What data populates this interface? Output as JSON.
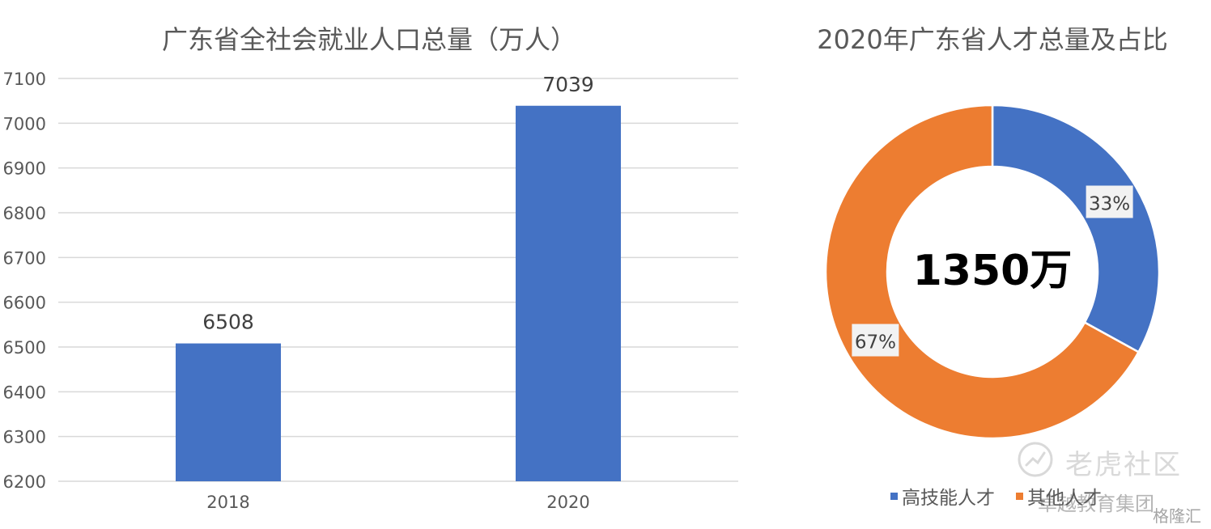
{
  "colors": {
    "blue": "#4472C4",
    "orange": "#ED7D31",
    "grid": "#D9D9D9",
    "text": "#595959"
  },
  "chart_data": [
    {
      "type": "bar",
      "title": "广东省全社会就业人口总量（万人）",
      "categories": [
        "2018",
        "2020"
      ],
      "values": [
        6508,
        7039
      ],
      "data_labels": [
        "6508",
        "7039"
      ],
      "ylim": [
        6200,
        7100
      ],
      "yticks": [
        "6200",
        "6300",
        "6400",
        "6500",
        "6600",
        "6700",
        "6800",
        "6900",
        "7000",
        "7100"
      ],
      "grid": true,
      "color": "#4472C4"
    },
    {
      "type": "pie",
      "donut": true,
      "title": "2020年广东省人才总量及占比",
      "center_label": "1350万",
      "slices": [
        {
          "name": "高技能人才",
          "value": 33,
          "label": "33%",
          "color": "#4472C4"
        },
        {
          "name": "其他人才",
          "value": 67,
          "label": "67%",
          "color": "#ED7D31"
        }
      ],
      "legend_position": "bottom"
    }
  ],
  "watermarks": {
    "tiger": "老虎社区",
    "group": "卓越教育集团",
    "gelonghui": "格隆汇"
  }
}
